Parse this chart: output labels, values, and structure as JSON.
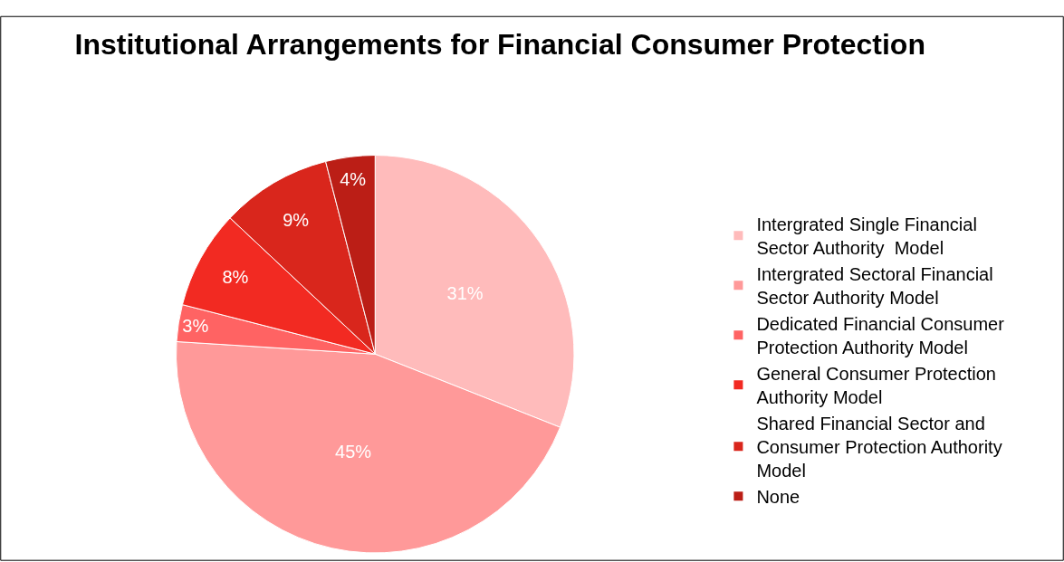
{
  "chart_data": {
    "type": "pie",
    "title": "Institutional Arrangements for Financial Consumer Protection",
    "categories": [
      "Intergrated Single Financial Sector Authority  Model",
      "Intergrated Sectoral Financial Sector Authority Model",
      "Dedicated Financial Consumer Protection Authority Model",
      "General Consumer Protection Authority Model",
      "Shared Financial Sector and Consumer Protection Authority Model",
      "None"
    ],
    "values": [
      31,
      45,
      3,
      8,
      9,
      4
    ],
    "colors": [
      "#ffbbbb",
      "#ff9999",
      "#ff6363",
      "#f22a22",
      "#d9261c",
      "#bb1e16"
    ],
    "value_labels": [
      "31%",
      "45%",
      "3%",
      "8%",
      "9%",
      "4%"
    ],
    "legend": "right"
  }
}
